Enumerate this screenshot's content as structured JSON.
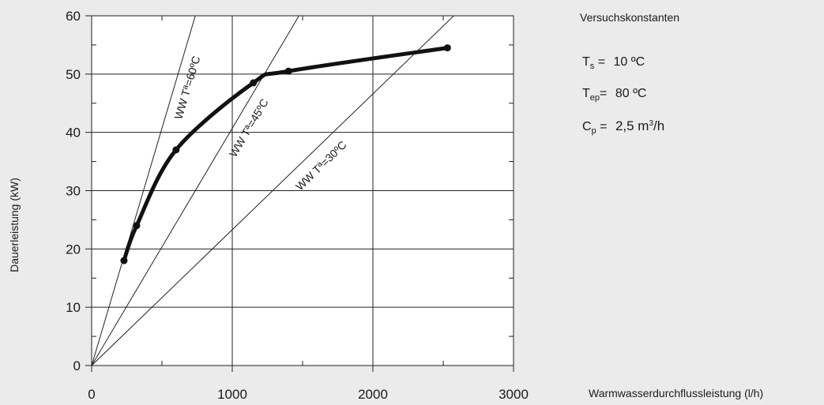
{
  "chart_data": {
    "type": "line",
    "title": "",
    "xlabel": "Warmwasserdurchflussleistung (l/h)",
    "ylabel": "Dauerleistung (kW)",
    "xlim": [
      0,
      3000
    ],
    "ylim": [
      0,
      60
    ],
    "x_ticks": [
      "0",
      "1000",
      "2000",
      "3000"
    ],
    "y_ticks": [
      "0",
      "10",
      "20",
      "30",
      "40",
      "50",
      "60"
    ],
    "grid": true,
    "series": [
      {
        "points": [
          [
            230,
            18
          ],
          [
            320,
            24
          ],
          [
            600,
            37
          ],
          [
            1150,
            48.5
          ],
          [
            1400,
            50.5
          ],
          [
            2530,
            54.5
          ]
        ],
        "color": "#111111"
      }
    ],
    "reference_lines": [
      {
        "label": "WW Tª=60ºC",
        "to": [
          1000,
          81.4
        ]
      },
      {
        "label": "WW Tª=45ºC",
        "to": [
          1000,
          40.7
        ]
      },
      {
        "label": "WW Tª=30ºC",
        "to": [
          1000,
          23.3
        ]
      }
    ]
  },
  "legend": {
    "title": "Versuchskonstanten",
    "constants": [
      {
        "symbol": "T",
        "sub": "s",
        "eq": "=",
        "value": "10 ºC"
      },
      {
        "symbol": "T",
        "sub": "ep",
        "eq": "=",
        "value": "80 ºC"
      },
      {
        "symbol": "C",
        "sub": "p",
        "eq": "=",
        "value": "2,5 m",
        "value_sup": "3",
        "value_tail": "/h"
      }
    ]
  }
}
